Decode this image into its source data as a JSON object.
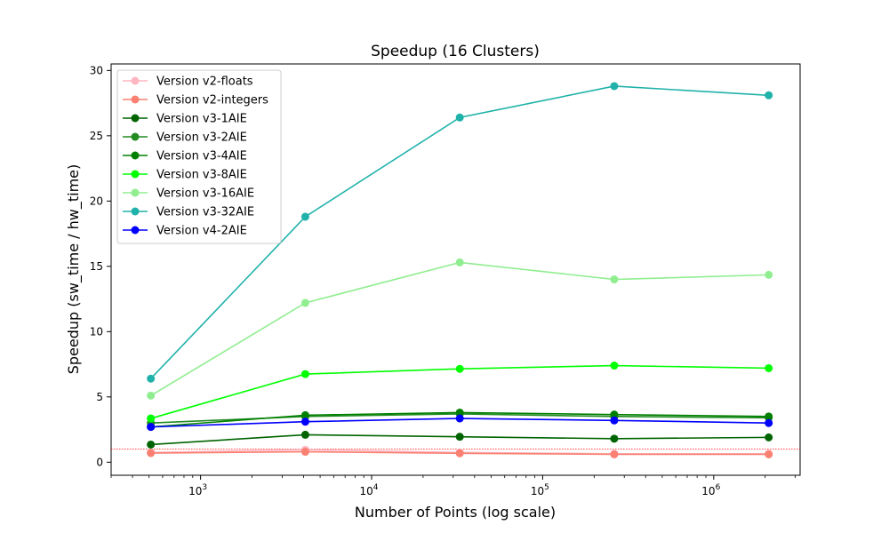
{
  "chart_data": {
    "type": "line",
    "title": "Speedup (16 Clusters)",
    "xlabel": "Number of Points (log scale)",
    "ylabel": "Speedup (sw_time / hw_time)",
    "x_scale": "log",
    "x": [
      512,
      4096,
      32768,
      262144,
      2097152
    ],
    "xlim": [
      300,
      3200000
    ],
    "ylim": [
      -1,
      30.5
    ],
    "x_ticks": [
      {
        "value": 1000,
        "base": "10",
        "exp": "3"
      },
      {
        "value": 10000,
        "base": "10",
        "exp": "4"
      },
      {
        "value": 100000,
        "base": "10",
        "exp": "5"
      },
      {
        "value": 1000000,
        "base": "10",
        "exp": "6"
      }
    ],
    "y_ticks": [
      0,
      5,
      10,
      15,
      20,
      25,
      30
    ],
    "y_tick_labels": [
      "0",
      "5",
      "10",
      "15",
      "20",
      "25",
      "30"
    ],
    "grid": false,
    "legend_position": "top-left",
    "reference_line": {
      "y": 1,
      "color": "#ff0000",
      "style": "dotted"
    },
    "series": [
      {
        "name": "Version v2-floats",
        "color": "#ffb6c1",
        "values": [
          0.75,
          0.95,
          0.75,
          0.65,
          0.65
        ]
      },
      {
        "name": "Version v2-integers",
        "color": "#fa8072",
        "values": [
          0.7,
          0.8,
          0.68,
          0.6,
          0.6
        ]
      },
      {
        "name": "Version v3-1AIE",
        "color": "#006400",
        "values": [
          1.35,
          2.1,
          1.95,
          1.8,
          1.9
        ]
      },
      {
        "name": "Version v3-2AIE",
        "color": "#228b22",
        "values": [
          3.0,
          3.5,
          3.7,
          3.5,
          3.4
        ]
      },
      {
        "name": "Version v3-4AIE",
        "color": "#008000",
        "values": [
          2.7,
          3.6,
          3.8,
          3.65,
          3.5
        ]
      },
      {
        "name": "Version v3-8AIE",
        "color": "#00ff00",
        "values": [
          3.35,
          6.75,
          7.15,
          7.4,
          7.2
        ]
      },
      {
        "name": "Version v3-16AIE",
        "color": "#90ee90",
        "values": [
          5.1,
          12.2,
          15.3,
          14.0,
          14.35
        ]
      },
      {
        "name": "Version v3-32AIE",
        "color": "#20b2aa",
        "values": [
          6.4,
          18.8,
          26.4,
          28.8,
          28.1
        ]
      },
      {
        "name": "Version v4-2AIE",
        "color": "#0000ff",
        "values": [
          2.7,
          3.1,
          3.35,
          3.2,
          3.0
        ]
      }
    ]
  }
}
